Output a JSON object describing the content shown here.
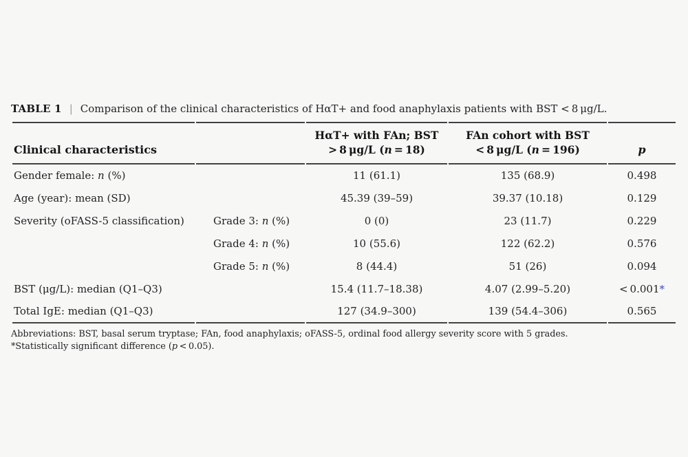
{
  "colors": {
    "background": "#f7f7f6",
    "rule": "#414141",
    "significant_marker": "#3b46c9"
  },
  "caption": {
    "label": "TABLE 1",
    "separator": "|",
    "text": "Comparison of the clinical characteristics of HαT+ and food anaphylaxis patients with BST < 8 μg/L."
  },
  "header": {
    "characteristics": "Clinical characteristics",
    "hat_line1": "HαT+ with FAn; BST",
    "hat_line2": [
      {
        "t": "> 8 μg/L ("
      },
      {
        "t": "n",
        "i": true
      },
      {
        "t": " = 18)"
      }
    ],
    "fan_line1": "FAn cohort with BST",
    "fan_line2": [
      {
        "t": "< 8 μg/L ("
      },
      {
        "t": "n",
        "i": true
      },
      {
        "t": " = 196)"
      }
    ],
    "p": "p"
  },
  "rows": [
    {
      "label": [
        {
          "t": "Gender female: "
        },
        {
          "t": "n",
          "i": true
        },
        {
          "t": " (%)"
        }
      ],
      "sub": [],
      "hat": "11 (61.1)",
      "fan": "135 (68.9)",
      "p": [
        {
          "t": "0.498"
        }
      ]
    },
    {
      "label": [
        {
          "t": "Age (year): mean (SD)"
        }
      ],
      "sub": [],
      "hat": "45.39 (39–59)",
      "fan": "39.37 (10.18)",
      "p": [
        {
          "t": "0.129"
        }
      ]
    },
    {
      "label": [
        {
          "t": "Severity (oFASS-5 classification)"
        }
      ],
      "sub": [
        {
          "t": "Grade 3: "
        },
        {
          "t": "n",
          "i": true
        },
        {
          "t": " (%)"
        }
      ],
      "hat": "0 (0)",
      "fan": "23 (11.7)",
      "p": [
        {
          "t": "0.229"
        }
      ]
    },
    {
      "label": [],
      "sub": [
        {
          "t": "Grade 4: "
        },
        {
          "t": "n",
          "i": true
        },
        {
          "t": " (%)"
        }
      ],
      "hat": "10 (55.6)",
      "fan": "122 (62.2)",
      "p": [
        {
          "t": "0.576"
        }
      ]
    },
    {
      "label": [],
      "sub": [
        {
          "t": "Grade 5: "
        },
        {
          "t": "n",
          "i": true
        },
        {
          "t": " (%)"
        }
      ],
      "hat": "8 (44.4)",
      "fan": "51 (26)",
      "p": [
        {
          "t": "0.094"
        }
      ]
    },
    {
      "label": [
        {
          "t": "BST (μg/L): median (Q1–Q3)"
        }
      ],
      "sub": [],
      "hat": "15.4 (11.7–18.38)",
      "fan": "4.07 (2.99–5.20)",
      "p": [
        {
          "t": "< 0.001"
        },
        {
          "t": "*",
          "c": "#3b46c9"
        }
      ]
    },
    {
      "label": [
        {
          "t": "Total IgE: median (Q1–Q3)"
        }
      ],
      "sub": [],
      "hat": "127 (34.9–300)",
      "fan": "139 (54.4–306)",
      "p": [
        {
          "t": "0.565"
        }
      ]
    }
  ],
  "footnotes": {
    "abbreviations": "Abbreviations: BST, basal serum tryptase; FAn, food anaphylaxis; oFASS-5, ordinal food allergy severity score with 5 grades.",
    "significance": [
      {
        "t": "*Statistically significant difference ("
      },
      {
        "t": "p",
        "i": true
      },
      {
        "t": " < 0.05)."
      }
    ]
  }
}
